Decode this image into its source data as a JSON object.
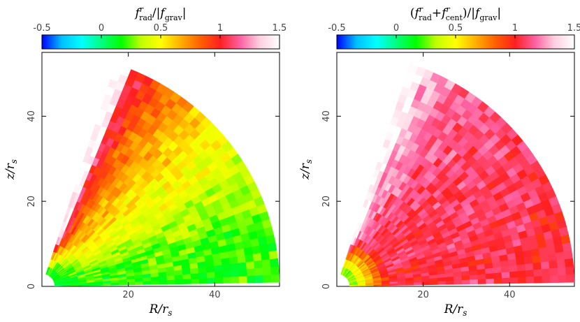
{
  "chart_data": [
    {
      "type": "heatmap",
      "panel": "left",
      "title_parts": {
        "pre": "",
        "f1": "f",
        "f1_sup": "r",
        "f1_sub": "rad",
        "f2": "",
        "f2_sup": "",
        "f2_sub": "",
        "mid": "/|",
        "f3": "f",
        "f3_sub": "grav",
        "post": "|"
      },
      "colorbar": {
        "range": [
          -0.5,
          1.5
        ],
        "ticks": [
          "-0.5",
          "0",
          "0.5",
          "1",
          "1.5"
        ],
        "tick_values": [
          -0.5,
          0,
          0.5,
          1,
          1.5
        ],
        "colormap": [
          "#0000ff",
          "#00c0ff",
          "#00ffff",
          "#00ff80",
          "#00ff00",
          "#c0ff00",
          "#ffff00",
          "#ffb000",
          "#ff6000",
          "#ff2020",
          "#ff60a0",
          "#ffd0e0",
          "#ffffff"
        ]
      },
      "xlabel": "R/r",
      "xlabel_sub": "s",
      "ylabel": "z/r",
      "ylabel_sub": "s",
      "xlim": [
        0,
        55
      ],
      "ylim": [
        0,
        55
      ],
      "xticks": [
        {
          "value": 20,
          "label": "20"
        },
        {
          "value": 40,
          "label": "40"
        }
      ],
      "yticks": [
        {
          "value": 0,
          "label": "0"
        },
        {
          "value": 20,
          "label": "20"
        },
        {
          "value": 40,
          "label": "40"
        }
      ],
      "domain": {
        "r_outer": 55,
        "r_inner": 3,
        "theta_min_deg": 1,
        "theta_max_deg": 72
      },
      "pattern": {
        "polar_edge": 1.45,
        "funnel": 1.1,
        "upper_wedge": 0.75,
        "mid": 0.5,
        "disk": 0.2,
        "core": 0.1
      }
    },
    {
      "type": "heatmap",
      "panel": "right",
      "title_parts": {
        "pre": "(",
        "f1": "f",
        "f1_sup": "r",
        "f1_sub": "rad",
        "f2": "+f",
        "f2_sup": "r",
        "f2_sub": "cent",
        "mid": ")/|",
        "f3": "f",
        "f3_sub": "grav",
        "post": "|"
      },
      "colorbar": {
        "range": [
          -0.5,
          1.5
        ],
        "ticks": [
          "-0.5",
          "0",
          "0.5",
          "1",
          "1.5"
        ],
        "tick_values": [
          -0.5,
          0,
          0.5,
          1,
          1.5
        ],
        "colormap": [
          "#0000ff",
          "#00c0ff",
          "#00ffff",
          "#00ff80",
          "#00ff00",
          "#c0ff00",
          "#ffff00",
          "#ffb000",
          "#ff6000",
          "#ff2020",
          "#ff60a0",
          "#ffd0e0",
          "#ffffff"
        ]
      },
      "xlabel": "R/r",
      "xlabel_sub": "s",
      "ylabel": "z/r",
      "ylabel_sub": "s",
      "xlim": [
        0,
        55
      ],
      "ylim": [
        0,
        55
      ],
      "xticks": [
        {
          "value": 20,
          "label": "20"
        },
        {
          "value": 40,
          "label": "40"
        }
      ],
      "yticks": [
        {
          "value": 0,
          "label": "0"
        },
        {
          "value": 20,
          "label": "20"
        },
        {
          "value": 40,
          "label": "40"
        }
      ],
      "domain": {
        "r_outer": 55,
        "r_inner": 3,
        "theta_min_deg": 1,
        "theta_max_deg": 72
      },
      "pattern": {
        "polar_edge": 1.45,
        "funnel": 1.3,
        "upper_wedge": 1.15,
        "mid": 1.08,
        "disk": 1.05,
        "core": 0.2
      }
    }
  ]
}
